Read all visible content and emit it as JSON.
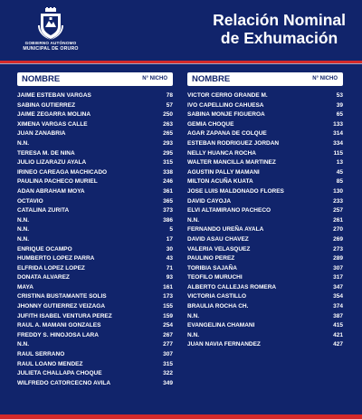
{
  "header": {
    "logo_line1": "GOBIERNO AUTÓNOMO",
    "logo_line2": "MUNICIPAL DE ORURO",
    "title_line1": "Relación Nominal",
    "title_line2": "de Exhumación"
  },
  "table": {
    "col_name": "NOMBRE",
    "col_number": "N° NICHO",
    "left_rows": [
      {
        "name": "JAIME ESTEBAN VARGAS",
        "nicho": "78"
      },
      {
        "name": "SABINA GUTIERREZ",
        "nicho": "57"
      },
      {
        "name": "JAIME ZEGARRA MOLINA",
        "nicho": "250"
      },
      {
        "name": "XIMENA VARGAS CALLE",
        "nicho": "263"
      },
      {
        "name": "JUAN ZANABRIA",
        "nicho": "265"
      },
      {
        "name": "N.N.",
        "nicho": "293"
      },
      {
        "name": "TERESA M. DE NINA",
        "nicho": "295"
      },
      {
        "name": "JULIO LIZARAZU AYALA",
        "nicho": "315"
      },
      {
        "name": "IRINEO CAREAGA MACHICADO",
        "nicho": "338"
      },
      {
        "name": "PAULINA PACHECO MURIEL",
        "nicho": "246"
      },
      {
        "name": "ADAN ABRAHAM MOYA",
        "nicho": "361"
      },
      {
        "name": "OCTAVIO",
        "nicho": "365"
      },
      {
        "name": "CATALINA ZURITA",
        "nicho": "373"
      },
      {
        "name": "N.N.",
        "nicho": "386"
      },
      {
        "name": "N.N.",
        "nicho": "5"
      },
      {
        "name": "N.N.",
        "nicho": "17"
      },
      {
        "name": "ENRIQUE OCAMPO",
        "nicho": "30"
      },
      {
        "name": "HUMBERTO LOPEZ PARRA",
        "nicho": "43"
      },
      {
        "name": "ELFRIDA LOPEZ LOPEZ",
        "nicho": "71"
      },
      {
        "name": "DONATA ALVAREZ",
        "nicho": "93"
      },
      {
        "name": "MAYA",
        "nicho": "161"
      },
      {
        "name": "CRISTINA BUSTAMANTE SOLIS",
        "nicho": "173"
      },
      {
        "name": "JHONNY GUTIERREZ VEIZAGA",
        "nicho": "155"
      },
      {
        "name": "JUFITH ISABEL VENTURA PEREZ",
        "nicho": "159"
      },
      {
        "name": "RAUL A. MAMANI GONZALES",
        "nicho": "254"
      },
      {
        "name": "FREDDY S. HINOJOSA LARA",
        "nicho": "267"
      },
      {
        "name": "N.N.",
        "nicho": "277"
      },
      {
        "name": "RAUL SERRANO",
        "nicho": "307"
      },
      {
        "name": "RAUL LOANO MENDEZ",
        "nicho": "315"
      },
      {
        "name": "JULIETA CHALLAPA CHOQUE",
        "nicho": "322"
      },
      {
        "name": "WILFREDO CATORCECNO AVILA",
        "nicho": "349"
      }
    ],
    "right_rows": [
      {
        "name": "VICTOR CERRO GRANDE M.",
        "nicho": "53"
      },
      {
        "name": "IVO CAPELLINO CAHUESA",
        "nicho": "39"
      },
      {
        "name": "SABINA MONJE FIGUEROA",
        "nicho": "65"
      },
      {
        "name": "GEMIA CHOQUE",
        "nicho": "133"
      },
      {
        "name": "AGAR ZAPANA DE COLQUE",
        "nicho": "314"
      },
      {
        "name": "ESTEBAN RODRIGUEZ JORDAN",
        "nicho": "334"
      },
      {
        "name": "NELLY HUANCA ROCHA",
        "nicho": "115"
      },
      {
        "name": "WALTER MANCILLA MARTINEZ",
        "nicho": "13"
      },
      {
        "name": "AGUSTIN PALLY MAMANI",
        "nicho": "45"
      },
      {
        "name": "MILTON ACUÑA KUATA",
        "nicho": "85"
      },
      {
        "name": "JOSE LUIS MALDONADO FLORES",
        "nicho": "130"
      },
      {
        "name": "DAVID CAYOJA",
        "nicho": "233"
      },
      {
        "name": "ELVI ALTAMIRANO PACHECO",
        "nicho": "257"
      },
      {
        "name": "N.N.",
        "nicho": "261"
      },
      {
        "name": "FERNANDO UREÑA AYALA",
        "nicho": "270"
      },
      {
        "name": "DAVID ASAU CHAVEZ",
        "nicho": "269"
      },
      {
        "name": "VALERIA VELASQUEZ",
        "nicho": "273"
      },
      {
        "name": "PAULINO PEREZ",
        "nicho": "289"
      },
      {
        "name": "TORIBIA SAJAÑA",
        "nicho": "307"
      },
      {
        "name": "TEOFILO MURUCHI",
        "nicho": "317"
      },
      {
        "name": "ALBERTO CALLEJAS ROMERA",
        "nicho": "347"
      },
      {
        "name": "VICTORIA CASTILLO",
        "nicho": "354"
      },
      {
        "name": "BRAULIA ROCHA CH.",
        "nicho": "374"
      },
      {
        "name": "N.N.",
        "nicho": "387"
      },
      {
        "name": "EVANGELINA CHAMANI",
        "nicho": "415"
      },
      {
        "name": "N.N.",
        "nicho": "421"
      },
      {
        "name": "JUAN NAVIA FERNANDEZ",
        "nicho": "427"
      }
    ]
  }
}
